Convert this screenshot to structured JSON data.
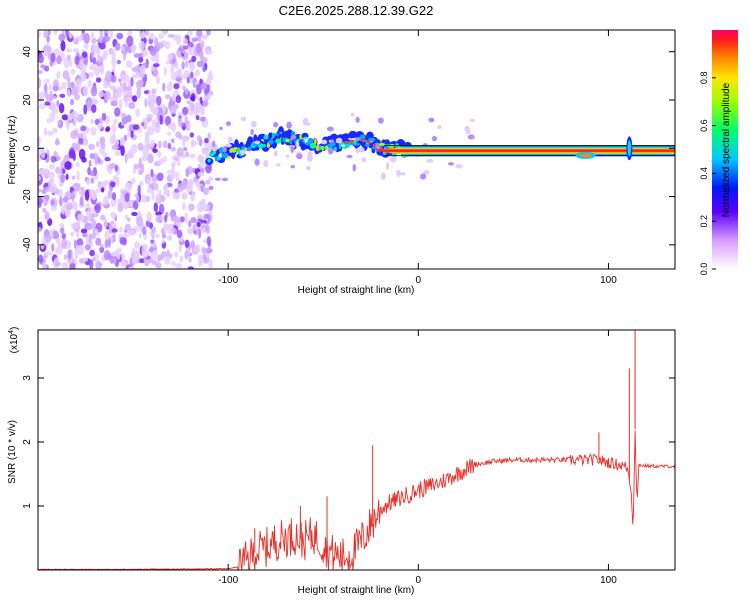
{
  "title": "C2E6.2025.288.12.39.G22",
  "chart_data": [
    {
      "type": "heatmap",
      "title": "C2E6.2025.288.12.39.G22",
      "xlabel": "Height of straight line (km)",
      "ylabel": "Frequency (Hz)",
      "xlim": [
        -200,
        135
      ],
      "ylim": [
        -50,
        49
      ],
      "x_ticks": [
        -100,
        0,
        100
      ],
      "x_tick_labels": [
        "-100",
        "0",
        "100"
      ],
      "y_ticks": [
        -40,
        -20,
        0,
        20,
        40
      ],
      "y_tick_labels": [
        "-40",
        "-20",
        "0",
        "20",
        "40"
      ],
      "noise_region_x": [
        -200,
        -109
      ],
      "signal_track": {
        "x": [
          -110,
          -100,
          -90,
          -80,
          -70,
          -60,
          -50,
          -40,
          -30,
          -20,
          -10,
          0,
          20,
          40,
          60,
          80,
          90,
          100,
          108,
          112,
          135
        ],
        "frequency": [
          -4,
          -2,
          0,
          3,
          5,
          3,
          1,
          2,
          4,
          0,
          -1,
          -1,
          -1,
          -1,
          -1,
          -1,
          -3,
          -1,
          -1,
          -1,
          -1
        ]
      },
      "colorbar": {
        "label": "Normalized spectral amplitude",
        "range": [
          0,
          1
        ],
        "ticks": [
          0,
          0.2,
          0.4,
          0.6,
          0.8
        ],
        "tick_labels": [
          "0.0",
          "0.2",
          "0.4",
          "0.6",
          "0.8"
        ]
      }
    },
    {
      "type": "line",
      "xlabel": "Height of straight line (km)",
      "ylabel": "SNR (10 * v/v)",
      "y_multiplier_label": "(x10",
      "y_multiplier_exp": "4",
      "y_multiplier_close": ")",
      "xlim": [
        -200,
        135
      ],
      "ylim": [
        0,
        3.75
      ],
      "x_ticks": [
        -100,
        0,
        100
      ],
      "x_tick_labels": [
        "-100",
        "0",
        "100"
      ],
      "y_ticks": [
        1,
        2,
        3
      ],
      "y_tick_labels": [
        "1",
        "2",
        "3"
      ],
      "series": [
        {
          "name": "SNR",
          "color": "#e8302a",
          "x": [
            -200,
            -150,
            -100,
            -95,
            -90,
            -85,
            -80,
            -75,
            -70,
            -65,
            -60,
            -55,
            -50,
            -45,
            -40,
            -35,
            -30,
            -25,
            -22,
            -20,
            -15,
            -10,
            -5,
            0,
            5,
            10,
            15,
            20,
            25,
            30,
            40,
            50,
            60,
            70,
            80,
            90,
            95,
            100,
            105,
            108,
            110,
            112,
            113,
            114,
            115,
            116,
            118,
            125,
            135
          ],
          "values": [
            0.01,
            0.01,
            0.02,
            0.05,
            0.15,
            0.3,
            0.35,
            0.45,
            0.5,
            0.55,
            0.45,
            0.55,
            0.4,
            0.25,
            0.2,
            0.25,
            0.45,
            0.7,
            0.85,
            0.95,
            1.05,
            1.12,
            1.18,
            1.25,
            1.3,
            1.35,
            1.42,
            1.5,
            1.58,
            1.65,
            1.7,
            1.72,
            1.72,
            1.72,
            1.72,
            1.72,
            1.72,
            1.68,
            1.65,
            1.63,
            1.6,
            1.2,
            0.6,
            2.2,
            1.0,
            1.65,
            1.63,
            1.62,
            1.62
          ]
        }
      ],
      "spikes": [
        {
          "x": -86,
          "value": 0.65
        },
        {
          "x": -62,
          "value": 1.0
        },
        {
          "x": -48,
          "value": 1.15
        },
        {
          "x": -24,
          "value": 1.95
        },
        {
          "x": 95,
          "value": 2.15
        },
        {
          "x": 111,
          "value": 3.15
        },
        {
          "x": 114,
          "value": 3.75
        }
      ]
    }
  ]
}
